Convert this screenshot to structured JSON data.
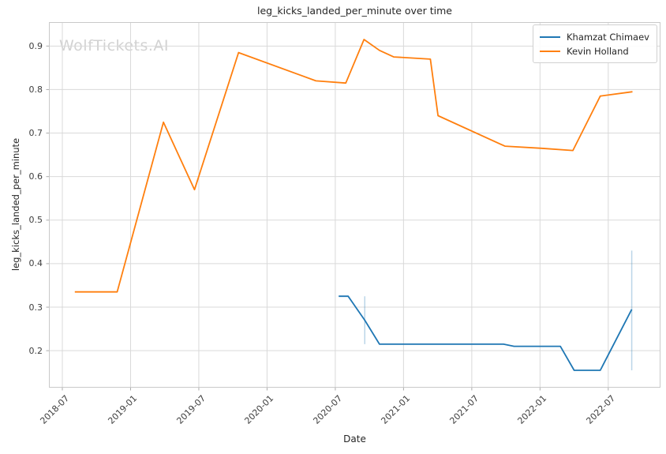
{
  "title": "leg_kicks_landed_per_minute over time",
  "watermark": "WolfTickets.AI",
  "chart_data": {
    "type": "line",
    "title": "leg_kicks_landed_per_minute over time",
    "xlabel": "Date",
    "ylabel": "leg_kicks_landed_per_minute",
    "legend_position": "upper right",
    "grid": true,
    "background": "#ffffff",
    "grid_color": "#d9d9d9",
    "spine_color": "#c9c9c9",
    "tick_color": "#ababab",
    "ylim": [
      0.115,
      0.955
    ],
    "xlim": [
      "2018-05-26",
      "2022-11-19"
    ],
    "y_ticks": [
      "0.2",
      "0.3",
      "0.4",
      "0.5",
      "0.6",
      "0.7",
      "0.8",
      "0.9"
    ],
    "x_ticks": [
      "2018-07",
      "2019-01",
      "2019-07",
      "2020-01",
      "2020-07",
      "2021-01",
      "2021-07",
      "2022-01",
      "2022-07"
    ],
    "series": [
      {
        "name": "Khamzat Chimaev",
        "color": "#1f77b4",
        "points": [
          [
            "2020-07-10",
            0.325
          ],
          [
            "2020-08-05",
            0.325
          ],
          [
            "2020-09-19",
            0.27
          ],
          [
            "2020-10-28",
            0.215
          ],
          [
            "2021-09-25",
            0.215
          ],
          [
            "2021-10-23",
            0.21
          ],
          [
            "2022-02-25",
            0.21
          ],
          [
            "2022-04-01",
            0.155
          ],
          [
            "2022-06-10",
            0.155
          ],
          [
            "2022-09-03",
            0.295
          ]
        ],
        "error_bars": [
          {
            "x": "2020-09-19",
            "low": 0.215,
            "high": 0.325
          },
          {
            "x": "2022-09-03",
            "low": 0.155,
            "high": 0.43
          }
        ]
      },
      {
        "name": "Kevin Holland",
        "color": "#ff7f0e",
        "points": [
          [
            "2018-08-04",
            0.335
          ],
          [
            "2018-11-26",
            0.335
          ],
          [
            "2019-03-28",
            0.725
          ],
          [
            "2019-06-20",
            0.57
          ],
          [
            "2019-10-16",
            0.885
          ],
          [
            "2020-05-10",
            0.82
          ],
          [
            "2020-07-29",
            0.815
          ],
          [
            "2020-09-17",
            0.915
          ],
          [
            "2020-10-28",
            0.89
          ],
          [
            "2020-12-05",
            0.875
          ],
          [
            "2021-03-12",
            0.87
          ],
          [
            "2021-04-02",
            0.74
          ],
          [
            "2021-09-29",
            0.67
          ],
          [
            "2022-01-05",
            0.665
          ],
          [
            "2022-03-28",
            0.66
          ],
          [
            "2022-06-10",
            0.785
          ],
          [
            "2022-09-05",
            0.795
          ]
        ],
        "error_bars": []
      }
    ]
  }
}
